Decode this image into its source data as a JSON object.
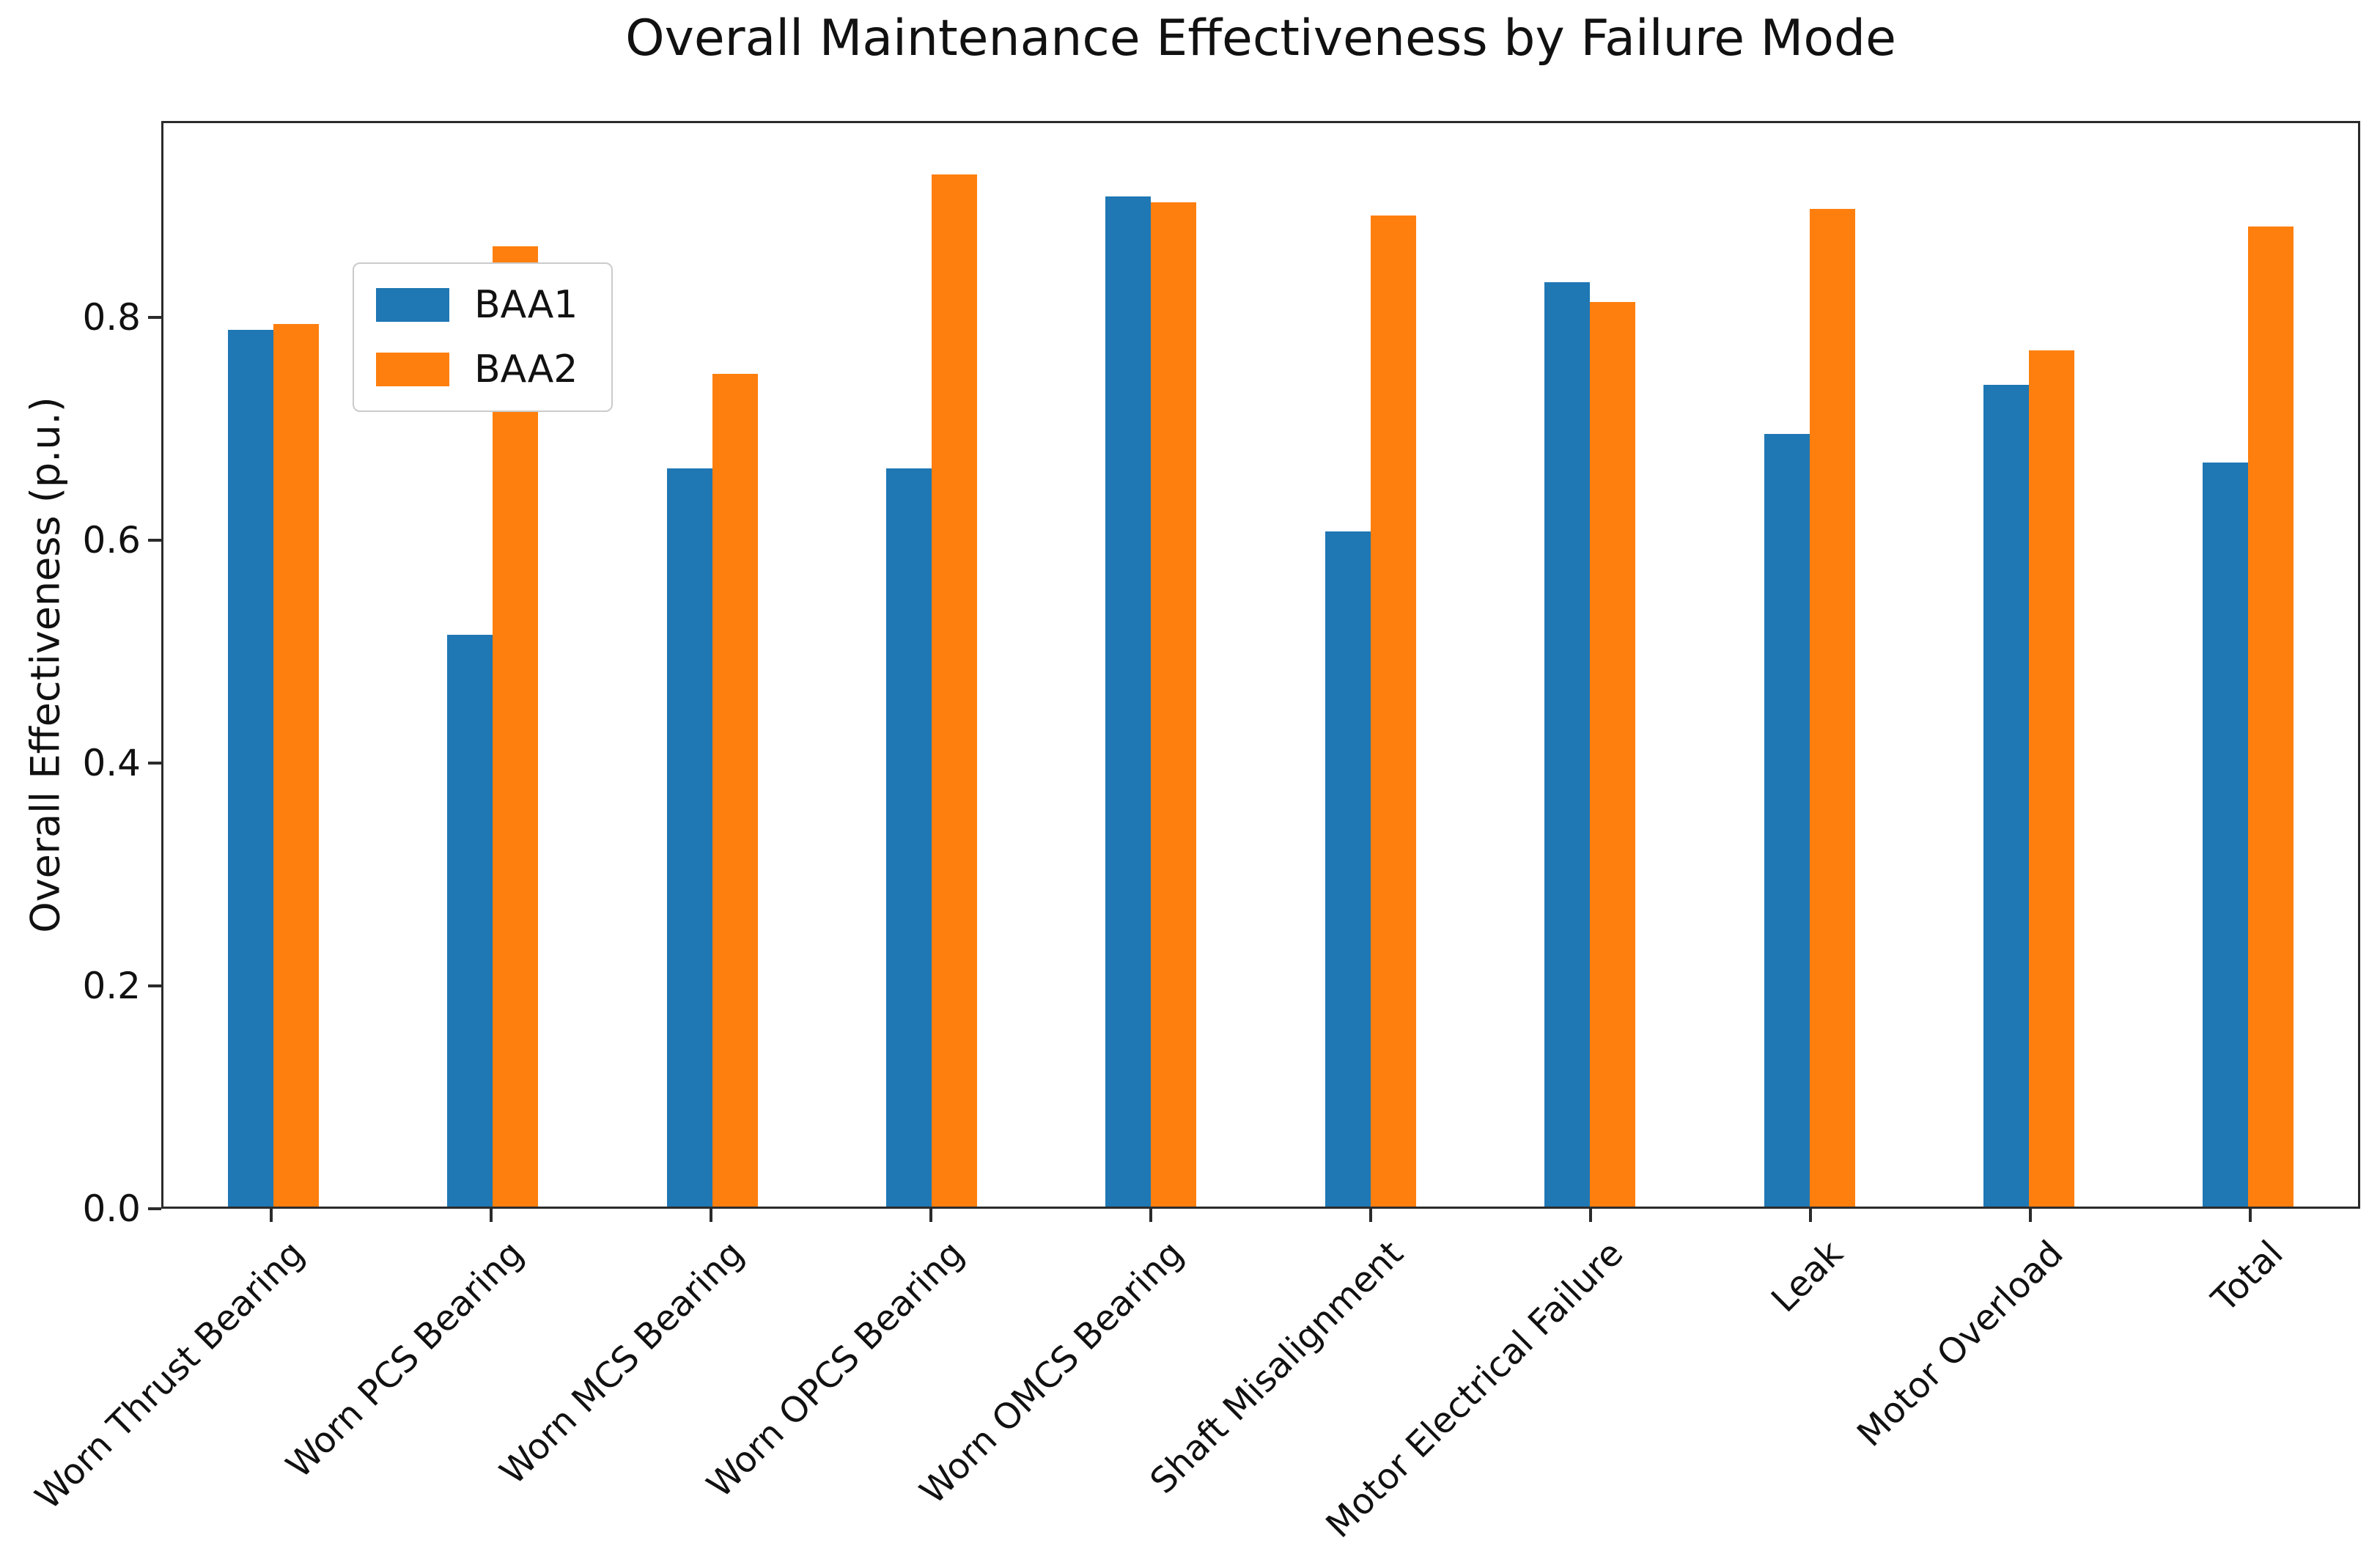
{
  "chart_data": {
    "type": "bar",
    "title": "Overall Maintenance Effectiveness by Failure Mode",
    "xlabel": "",
    "ylabel": "Overall Effectiveness (p.u.)",
    "categories": [
      "Worn Thrust Bearing",
      "Worn PCS Bearing",
      "Worn MCS Bearing",
      "Worn OPCS Bearing",
      "Worn OMCS Bearing",
      "Shaft Misalignment",
      "Motor Electrical Failure",
      "Leak",
      "Motor Overload",
      "Total"
    ],
    "series": [
      {
        "name": "BAA1",
        "color": "#1f77b4",
        "values": [
          0.79,
          0.515,
          0.665,
          0.665,
          0.91,
          0.608,
          0.833,
          0.696,
          0.74,
          0.67
        ]
      },
      {
        "name": "BAA2",
        "color": "#ff7f0e",
        "values": [
          0.795,
          0.865,
          0.75,
          0.93,
          0.905,
          0.893,
          0.815,
          0.899,
          0.771,
          0.883
        ]
      }
    ],
    "ylim": [
      0,
      0.976
    ],
    "yticks": [
      "0.0",
      "0.2",
      "0.4",
      "0.6",
      "0.8"
    ],
    "ytick_values": [
      0.0,
      0.2,
      0.4,
      0.6,
      0.8
    ],
    "grid": false,
    "legend_position": "upper left",
    "x_tick_rotation": 45
  }
}
